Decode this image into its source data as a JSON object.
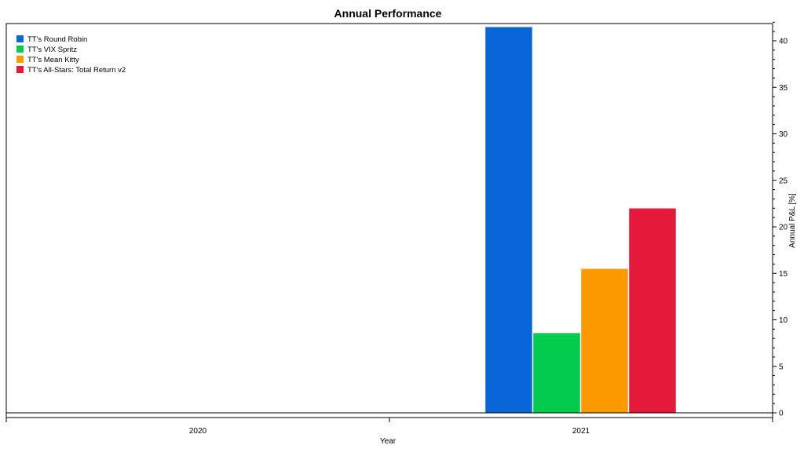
{
  "chart_data": {
    "type": "bar",
    "title": "Annual Performance",
    "xlabel": "Year",
    "ylabel": "Annual P&L [%]",
    "categories": [
      "2020",
      "2021"
    ],
    "ylim": [
      0,
      42
    ],
    "yticks": [
      0,
      5,
      10,
      15,
      20,
      25,
      30,
      35,
      40
    ],
    "y_axis_side": "right",
    "grid": false,
    "legend_position": "top-left",
    "series": [
      {
        "name": "TT's Round Robin",
        "color": "#0866d8",
        "values": [
          null,
          41.5
        ]
      },
      {
        "name": "TT's VIX Spritz",
        "color": "#03cb4e",
        "values": [
          null,
          8.6
        ]
      },
      {
        "name": "TT's Mean Kitty",
        "color": "#fc9800",
        "values": [
          null,
          15.5
        ]
      },
      {
        "name": "TT's All-Stars: Total Return v2",
        "color": "#e5193a",
        "values": [
          null,
          22.0
        ]
      }
    ]
  }
}
